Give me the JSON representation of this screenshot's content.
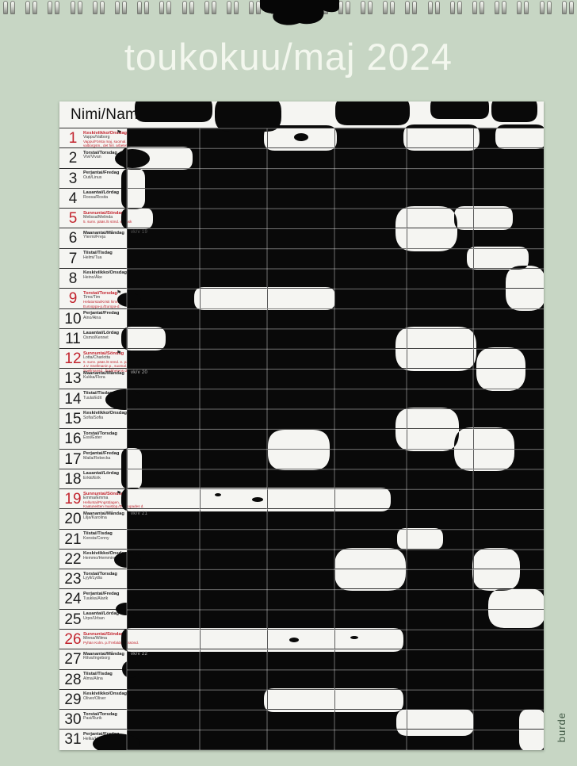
{
  "page": {
    "title": "toukokuu/maj 2024",
    "brand": "burde",
    "header_label": "Nimi/Namn"
  },
  "colors": {
    "background": "#c7d6c4",
    "card": "#f5f5f2",
    "holiday_red": "#c2242e",
    "ink": "#1d1d1d"
  },
  "weeks": [
    {
      "label": "vk/v 19",
      "day": 6,
      "tone": "dark"
    },
    {
      "label": "vk/v 20",
      "day": 13,
      "tone": "light"
    },
    {
      "label": "vk/v 21",
      "day": 20,
      "tone": "mid"
    },
    {
      "label": "vk/v 22",
      "day": 27,
      "tone": "light"
    }
  ],
  "days": [
    {
      "num": 1,
      "weekday": "Keskiviikko/Onsdag",
      "names": "Vappu/Valborg",
      "red": true,
      "flag": true,
      "extra": [
        "Vappu/Första maj, suomal. työn p./",
        "valborgsm., det finl. arbetets d."
      ]
    },
    {
      "num": 2,
      "weekday": "Torstai/Torsdag",
      "names": "Vivi/Vivan",
      "red": false,
      "flag": false,
      "extra": []
    },
    {
      "num": 3,
      "weekday": "Perjantai/Fredag",
      "names": "Outi/Linus",
      "red": false,
      "flag": false,
      "extra": []
    },
    {
      "num": 4,
      "weekday": "Lauantai/Lördag",
      "names": "Roosa/Rosita",
      "red": false,
      "flag": false,
      "extra": []
    },
    {
      "num": 5,
      "weekday": "Sunnuntai/Söndag",
      "names": "Melissa/Melinda",
      "red": true,
      "flag": false,
      "extra": [
        "5. sunn. pääs./5 sönd. e. påsk"
      ]
    },
    {
      "num": 6,
      "weekday": "Maanantai/Måndag",
      "names": "Ylermi/Freja",
      "red": false,
      "flag": false,
      "extra": []
    },
    {
      "num": 7,
      "weekday": "Tiistai/Tisdag",
      "names": "Helmi/Tua",
      "red": false,
      "flag": false,
      "extra": []
    },
    {
      "num": 8,
      "weekday": "Keskiviikko/Onsdag",
      "names": "Heino/Åke",
      "red": false,
      "flag": false,
      "extra": []
    },
    {
      "num": 9,
      "weekday": "Torstai/Torsdag",
      "names": "Timo/Tim",
      "red": true,
      "flag": true,
      "extra": [
        "Helatorstai/Kristi himmelsfärdsd.",
        "Eurooppa-p./Europa-d."
      ]
    },
    {
      "num": 10,
      "weekday": "Perjantai/Fredag",
      "names": "Aino/Aina",
      "red": false,
      "flag": false,
      "extra": []
    },
    {
      "num": 11,
      "weekday": "Lauantai/Lördag",
      "names": "Osmo/Kennet",
      "red": false,
      "flag": false,
      "extra": []
    },
    {
      "num": 12,
      "weekday": "Sunnuntai/Söndag",
      "names": "Lotta/Charlotta",
      "red": true,
      "flag": true,
      "extra": [
        "6. sunn. pääs./6 sönd. e. påsk",
        "J.V. Snellmanin p., suomal. p., äitienp./",
        "Snellmansd., finskhetens d., mors dag"
      ]
    },
    {
      "num": 13,
      "weekday": "Maanantai/Måndag",
      "names": "Kukka/Flora",
      "red": false,
      "flag": false,
      "extra": []
    },
    {
      "num": 14,
      "weekday": "Tiistai/Tisdag",
      "names": "Tuula/Edit",
      "red": false,
      "flag": false,
      "extra": []
    },
    {
      "num": 15,
      "weekday": "Keskiviikko/Onsdag",
      "names": "Sofia/Sofia",
      "red": false,
      "flag": false,
      "extra": []
    },
    {
      "num": 16,
      "weekday": "Torstai/Torsdag",
      "names": "Essi/Ester",
      "red": false,
      "flag": false,
      "extra": []
    },
    {
      "num": 17,
      "weekday": "Perjantai/Fredag",
      "names": "Maila/Rebecka",
      "red": false,
      "flag": false,
      "extra": []
    },
    {
      "num": 18,
      "weekday": "Lauantai/Lördag",
      "names": "Erkki/Erik",
      "red": false,
      "flag": false,
      "extra": []
    },
    {
      "num": 19,
      "weekday": "Sunnuntai/Söndag",
      "names": "Emma/Emma",
      "red": true,
      "flag": true,
      "extra": [
        "Helluntai/Pingstdagen,",
        "Kaatuneitten muistop./De stupades d."
      ]
    },
    {
      "num": 20,
      "weekday": "Maanantai/Måndag",
      "names": "Lilja/Karolina",
      "red": false,
      "flag": false,
      "extra": []
    },
    {
      "num": 21,
      "weekday": "Tiistai/Tisdag",
      "names": "Konsta/Conny",
      "red": false,
      "flag": false,
      "extra": []
    },
    {
      "num": 22,
      "weekday": "Keskiviikko/Onsdag",
      "names": "Hemmo/Hemming",
      "red": false,
      "flag": false,
      "extra": []
    },
    {
      "num": 23,
      "weekday": "Torstai/Torsdag",
      "names": "Lyyli/Lydia",
      "red": false,
      "flag": false,
      "extra": []
    },
    {
      "num": 24,
      "weekday": "Perjantai/Fredag",
      "names": "Tuukka/Alarik",
      "red": false,
      "flag": false,
      "extra": []
    },
    {
      "num": 25,
      "weekday": "Lauantai/Lördag",
      "names": "Urpo/Urban",
      "red": false,
      "flag": false,
      "extra": []
    },
    {
      "num": 26,
      "weekday": "Sunnuntai/Söndag",
      "names": "Minna/Wilma",
      "red": true,
      "flag": false,
      "extra": [
        "Pyhän Kolm. p./Trefaldighetssönd."
      ]
    },
    {
      "num": 27,
      "weekday": "Maanantai/Måndag",
      "names": "Ritva/Ingeborg",
      "red": false,
      "flag": false,
      "extra": []
    },
    {
      "num": 28,
      "weekday": "Tiistai/Tisdag",
      "names": "Alma/Alina",
      "red": false,
      "flag": false,
      "extra": []
    },
    {
      "num": 29,
      "weekday": "Keskiviikko/Onsdag",
      "names": "Oliver/Oliver",
      "red": false,
      "flag": false,
      "extra": []
    },
    {
      "num": 30,
      "weekday": "Torstai/Torsdag",
      "names": "Pasi/Rurik",
      "red": false,
      "flag": false,
      "extra": []
    },
    {
      "num": 31,
      "weekday": "Perjantai/Fredag",
      "names": "Helka/Helga",
      "red": false,
      "flag": false,
      "extra": []
    }
  ]
}
